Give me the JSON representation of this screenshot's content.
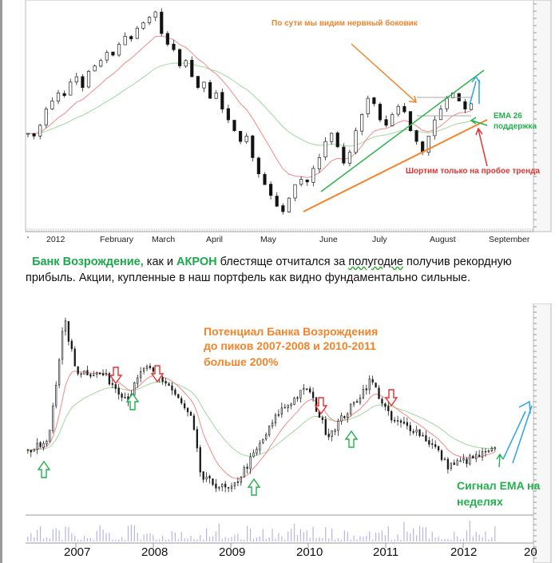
{
  "paragraph": {
    "bank": "Банк Возрождение,",
    "t1": " как и ",
    "akron": "АКРОН",
    "t2": " блестяще отчитался за ",
    "halfyear": "полугодие",
    "t3": " получив рекордную",
    "line2": "прибыль. Акции, купленные в наш портфель как видно фундаментально сильные."
  },
  "colors": {
    "orange": "#f5832a",
    "green": "#22b24c",
    "red": "#e8312f",
    "blue": "#2aa3e8",
    "ema_fast": "#f08a8a",
    "ema_slow": "#9fd89f"
  },
  "chart_data": [
    {
      "type": "candlestick",
      "title": "",
      "x_ticks": [
        "2012",
        "February",
        "March",
        "April",
        "May",
        "June",
        "July",
        "August",
        "September"
      ],
      "ylim": [
        1250,
        1620
      ],
      "closes": [
        1395,
        1390,
        1410,
        1440,
        1455,
        1470,
        1465,
        1490,
        1500,
        1480,
        1510,
        1520,
        1530,
        1545,
        1540,
        1560,
        1575,
        1570,
        1590,
        1600,
        1610,
        1620,
        1580,
        1560,
        1550,
        1520,
        1530,
        1500,
        1480,
        1490,
        1460,
        1470,
        1440,
        1420,
        1400,
        1380,
        1390,
        1350,
        1320,
        1300,
        1280,
        1260,
        1250,
        1275,
        1300,
        1310,
        1305,
        1330,
        1350,
        1380,
        1395,
        1370,
        1340,
        1360,
        1400,
        1430,
        1460,
        1450,
        1420,
        1410,
        1430,
        1445,
        1435,
        1400,
        1380,
        1360,
        1390,
        1420,
        1440,
        1460,
        1470,
        1455,
        1440,
        1450
      ],
      "ema_periods": [
        10,
        26
      ],
      "annotations": {
        "top": "По сути мы видим нервный боковик",
        "ema": [
          "EMA 26",
          "поддержка"
        ],
        "short": "Шортим только на пробое тренда"
      }
    },
    {
      "type": "candlestick",
      "x_ticks": [
        "2007",
        "2008",
        "2009",
        "2010",
        "2011",
        "2012",
        "20"
      ],
      "ylim": [
        200,
        2400
      ],
      "price_path": [
        [
          2006.38,
          860
        ],
        [
          2006.64,
          950
        ],
        [
          2006.85,
          2312
        ],
        [
          2007.0,
          1750
        ],
        [
          2007.36,
          1700
        ],
        [
          2007.67,
          1432
        ],
        [
          2007.88,
          1784
        ],
        [
          2008.19,
          1600
        ],
        [
          2008.5,
          1200
        ],
        [
          2008.62,
          560
        ],
        [
          2009.0,
          420
        ],
        [
          2009.32,
          850
        ],
        [
          2009.63,
          1300
        ],
        [
          2009.99,
          1560
        ],
        [
          2010.25,
          1036
        ],
        [
          2010.56,
          1350
        ],
        [
          2010.81,
          1650
        ],
        [
          2011.07,
          1200
        ],
        [
          2011.38,
          1100
        ],
        [
          2011.64,
          900
        ],
        [
          2011.79,
          700
        ],
        [
          2012.05,
          760
        ],
        [
          2012.41,
          870
        ]
      ],
      "ema_periods": [
        10,
        26
      ],
      "annotations": {
        "potential": [
          "Потенциал Банка Возрождения",
          "до пиков 2007-2008 и 2010-2011",
          "больше 200%"
        ],
        "signal": [
          "Сигнал EMA на",
          "неделях"
        ]
      }
    }
  ]
}
